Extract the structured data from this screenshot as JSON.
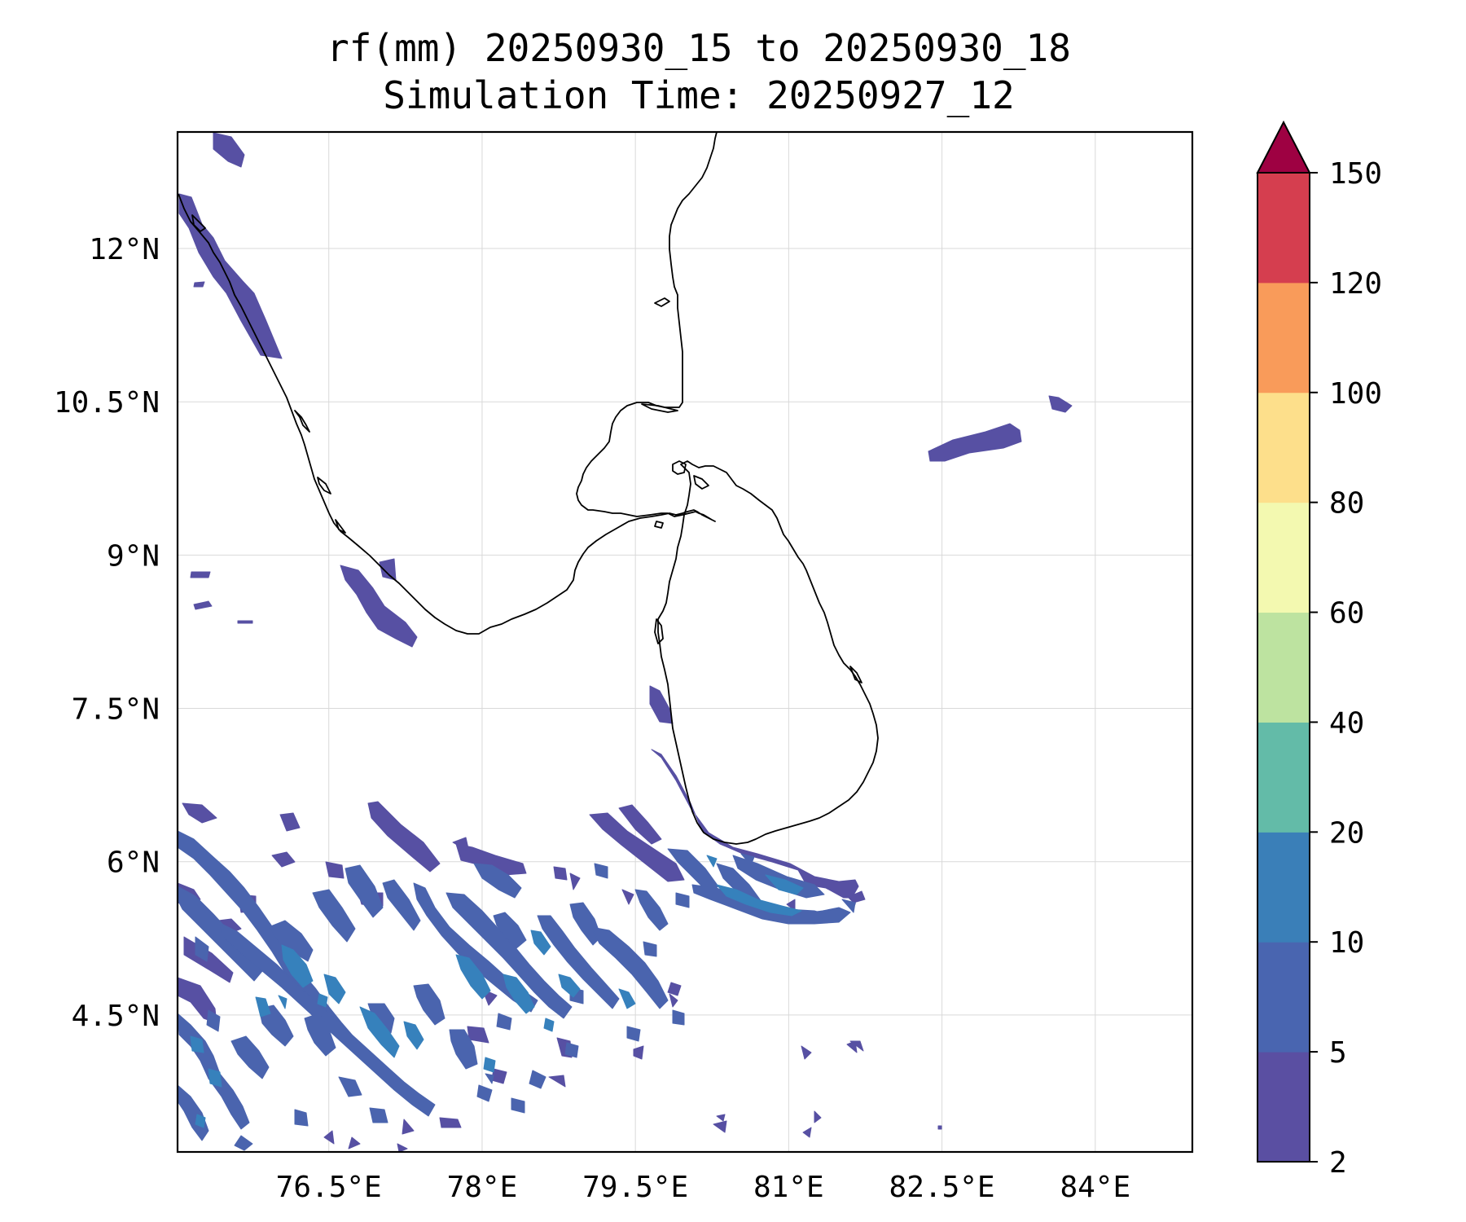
{
  "title": {
    "line1": "rf(mm) 20250930_15 to 20250930_18",
    "line2": "Simulation Time: 20250927_12"
  },
  "axes": {
    "lat_labels": [
      "12°N",
      "10.5°N",
      "9°N",
      "7.5°N",
      "6°N",
      "4.5°N"
    ],
    "lon_labels": [
      "76.5°E",
      "78°E",
      "79.5°E",
      "81°E",
      "82.5°E",
      "84°E"
    ],
    "lat_values": [
      12,
      10.5,
      9,
      7.5,
      6,
      4.5
    ],
    "lon_values": [
      76.5,
      78,
      79.5,
      81,
      82.5,
      84
    ],
    "lon_range": [
      75.02,
      84.95
    ],
    "lat_range": [
      3.16,
      13.14
    ]
  },
  "colorbar": {
    "units": "mm",
    "ticks": [
      "2",
      "5",
      "10",
      "20",
      "40",
      "60",
      "80",
      "100",
      "120",
      "150"
    ],
    "colors": [
      "#5a4fa2",
      "#4965b0",
      "#3a7fb8",
      "#63bba8",
      "#bde3a0",
      "#f3f9b0",
      "#fddf8b",
      "#f99b5a",
      "#d53e4f",
      "#9e0142"
    ],
    "extend": "max"
  },
  "precip_colors": {
    "light": "#5750a3",
    "medium": "#4a64ae",
    "heavy": "#3681bc"
  }
}
